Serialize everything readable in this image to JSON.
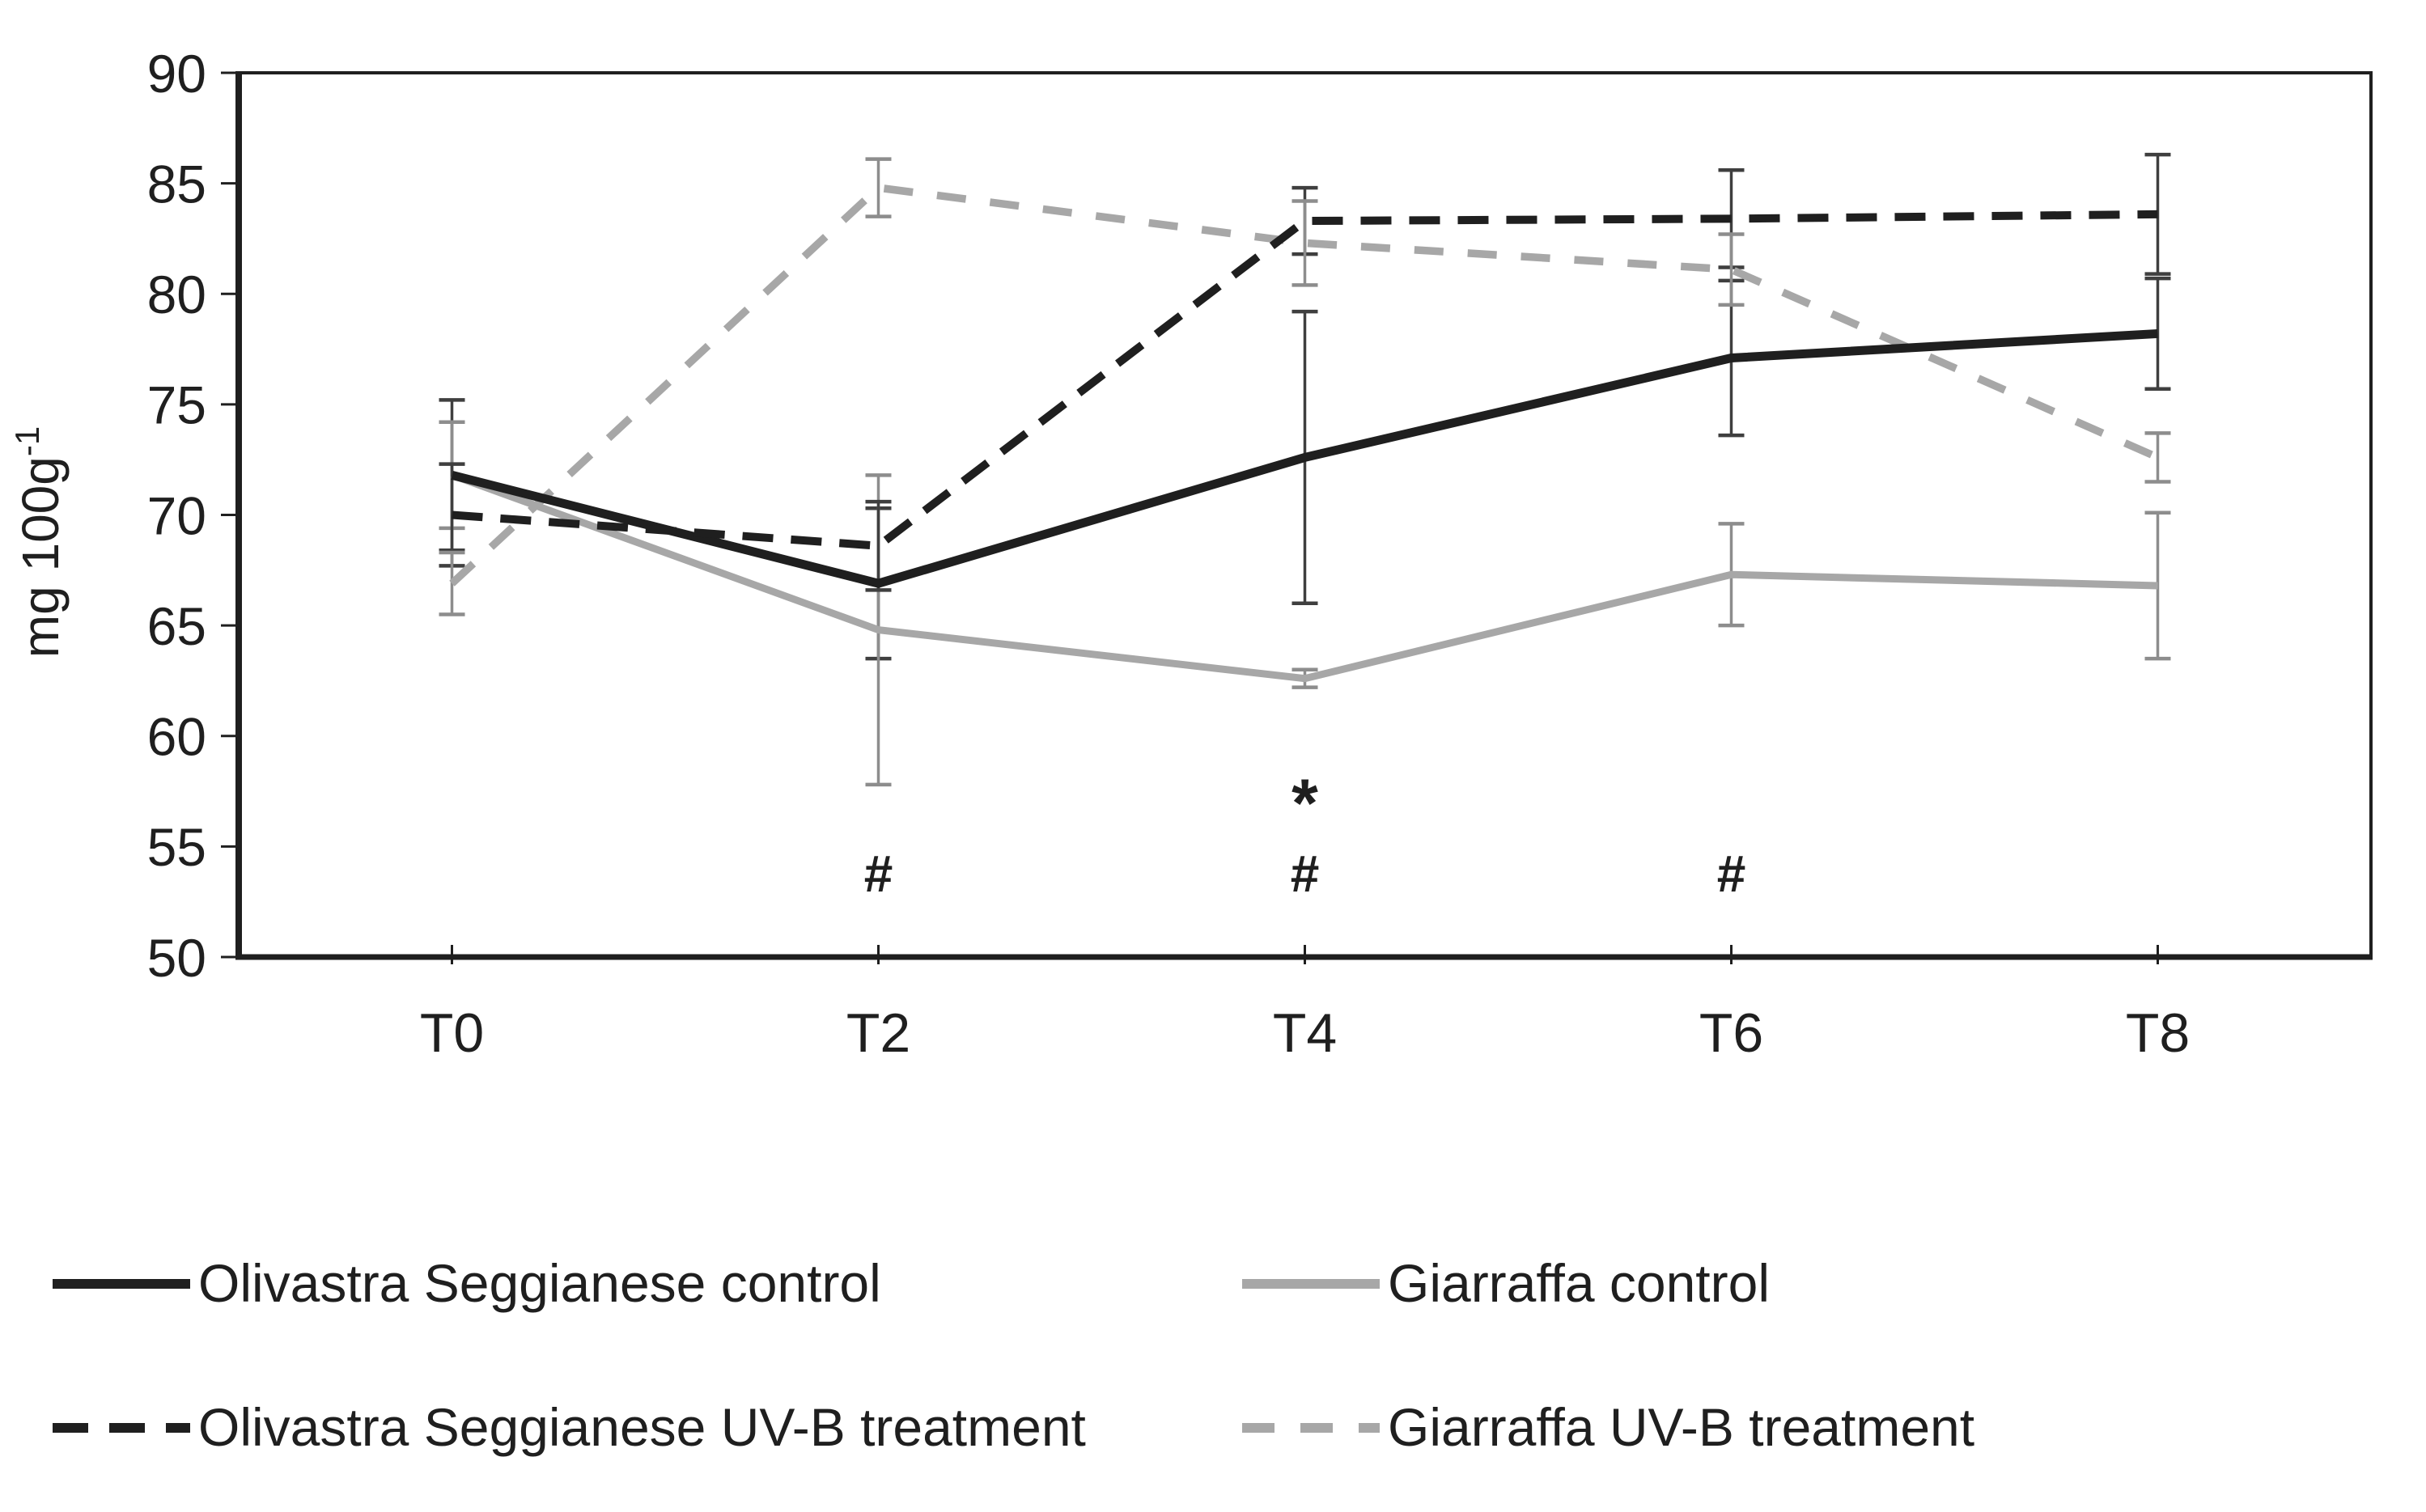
{
  "figure": {
    "background_color": "#ffffff",
    "ink_color": "#1f1f1f",
    "gray_color": "#a7a7a7"
  },
  "chart_data": {
    "type": "line",
    "title": "",
    "categories": [
      "T0",
      "T2",
      "T4",
      "T6",
      "T8"
    ],
    "xlabel": "",
    "ylabel": {
      "text": "mg 100g⁻¹",
      "main": "mg 100g",
      "superscript": "-1"
    },
    "ylim": [
      50,
      90
    ],
    "yticks": [
      50,
      55,
      60,
      65,
      70,
      75,
      80,
      85,
      90
    ],
    "grid": false,
    "legend_position": "below-chart-two-columns",
    "series": [
      {
        "name": "Olivastra Seggianese control",
        "line_style": "solid",
        "color": "#1f1f1f",
        "error_color": "#3f3f3f",
        "values": [
          71.8,
          66.9,
          72.6,
          77.1,
          78.2
        ],
        "errors": [
          3.4,
          3.4,
          6.6,
          3.5,
          2.5
        ]
      },
      {
        "name": "Giarraffa control",
        "line_style": "solid",
        "color": "#a7a7a7",
        "error_color": "#8d8d8d",
        "values": [
          71.8,
          64.8,
          62.6,
          67.3,
          66.8
        ],
        "errors": [
          2.4,
          7.0,
          0.4,
          2.3,
          3.3
        ]
      },
      {
        "name": "Olivastra Seggianese UV-B treatment",
        "line_style": "dashed",
        "color": "#1f1f1f",
        "error_color": "#3f3f3f",
        "values": [
          70.0,
          68.6,
          83.3,
          83.4,
          83.6
        ],
        "errors": [
          2.3,
          2.0,
          1.5,
          2.2,
          2.7
        ]
      },
      {
        "name": "Giarraffa UV-B treatment",
        "line_style": "dashed",
        "color": "#a7a7a7",
        "error_color": "#8d8d8d",
        "values": [
          66.9,
          84.8,
          82.3,
          81.1,
          72.6
        ],
        "errors": [
          1.4,
          1.3,
          1.9,
          1.6,
          1.1
        ]
      }
    ],
    "annotations": [
      {
        "category": "T2",
        "y": 53.8,
        "text": "#"
      },
      {
        "category": "T4",
        "y": 57.6,
        "text": "*"
      },
      {
        "category": "T4",
        "y": 53.8,
        "text": "#"
      },
      {
        "category": "T6",
        "y": 53.8,
        "text": "#"
      }
    ],
    "legend": [
      {
        "label": "Olivastra Seggianese control",
        "style": "solid",
        "color": "#1f1f1f"
      },
      {
        "label": "Giarraffa control",
        "style": "solid",
        "color": "#a7a7a7"
      },
      {
        "label": "Olivastra Seggianese UV-B treatment",
        "style": "dashed",
        "color": "#1f1f1f"
      },
      {
        "label": "Giarraffa UV-B treatment",
        "style": "dashed",
        "color": "#a7a7a7"
      }
    ]
  }
}
